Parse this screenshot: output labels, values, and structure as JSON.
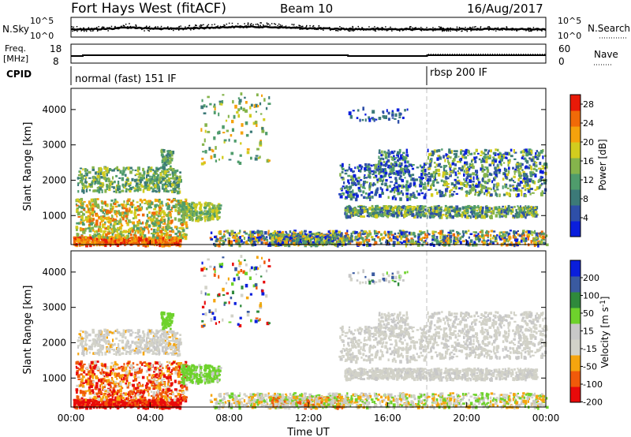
{
  "header": {
    "radar": "Fort Hays West (fitACF)",
    "beam": "Beam 10",
    "date": "16/Aug/2017"
  },
  "colors": {
    "power_scale": [
      "#0a1edc",
      "#2e4fa8",
      "#3c7a78",
      "#4f9c6c",
      "#85b44c",
      "#d2cc1e",
      "#f5a20c",
      "#f06a08",
      "#e81a08"
    ],
    "velocity_scale": [
      "#e80a0a",
      "#f05a0a",
      "#f5a50e",
      "#d2d2c8",
      "#c8c8c8",
      "#6ed22c",
      "#2f8a3c",
      "#3a5aa0",
      "#0a1edc"
    ]
  },
  "chart_data": [
    {
      "type": "line",
      "name": "noise-panel",
      "left_label": "N.Sky",
      "right_label": "N.Search",
      "left_ticks": [
        "10^5",
        "10^0"
      ],
      "right_ticks": [
        "10^5",
        "10^0"
      ]
    },
    {
      "type": "line",
      "name": "frequency-panel",
      "left_label_lines": [
        "Freq.",
        "[MHz]"
      ],
      "left_ticks": [
        18,
        8
      ],
      "right_label": "Nave",
      "right_ticks": [
        60,
        0
      ]
    },
    {
      "type": "table",
      "name": "cpid-panel",
      "label": "CPID",
      "segments": [
        {
          "start": "00:00",
          "text": "normal (fast) 151 IF"
        },
        {
          "start": "18:00",
          "text": "rbsp 200 IF"
        }
      ]
    },
    {
      "type": "heatmap",
      "name": "power-panel",
      "ylabel": "Slant Range [km]",
      "yticks": [
        1000,
        2000,
        3000,
        4000
      ],
      "ylim": [
        180,
        4600
      ],
      "colorbar_label": "Power [dB]",
      "colorbar_ticks": [
        4,
        8,
        12,
        16,
        20,
        24,
        28
      ],
      "colorbar_range": [
        0,
        30
      ]
    },
    {
      "type": "heatmap",
      "name": "velocity-panel",
      "ylabel": "Slant Range [km]",
      "yticks": [
        1000,
        2000,
        3000,
        4000
      ],
      "ylim": [
        180,
        4600
      ],
      "colorbar_label": "Velocity [m s^-1]",
      "colorbar_ticks": [
        200,
        100,
        50,
        15,
        -15,
        -50,
        -100,
        -200
      ]
    }
  ],
  "x_axis": {
    "label": "Time UT",
    "ticks": [
      "00:00",
      "04:00",
      "08:00",
      "12:00",
      "16:00",
      "20:00",
      "00:00"
    ],
    "range_hours": [
      0,
      24
    ]
  }
}
